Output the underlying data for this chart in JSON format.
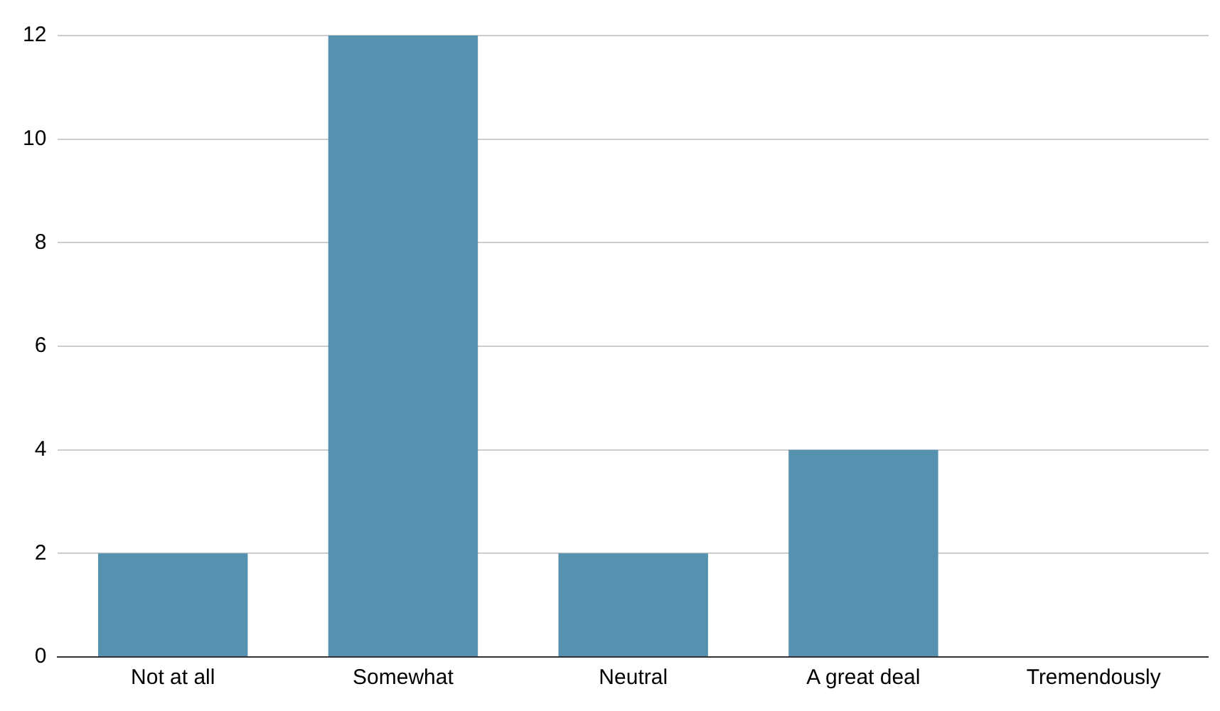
{
  "chart_data": {
    "type": "bar",
    "categories": [
      "Not at all",
      "Somewhat",
      "Neutral",
      "A great deal",
      "Tremendously"
    ],
    "values": [
      2,
      12,
      2,
      4,
      0
    ],
    "color": "#5691b0",
    "ylim": [
      0,
      12
    ],
    "yticks": [
      0,
      2,
      4,
      6,
      8,
      10,
      12
    ],
    "grid": "y"
  }
}
